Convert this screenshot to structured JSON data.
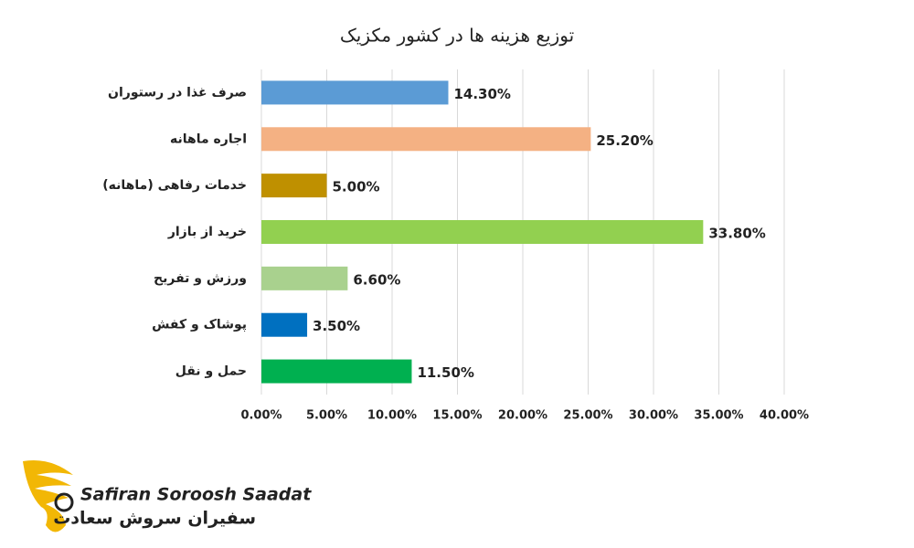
{
  "chart_data": {
    "type": "bar",
    "orientation": "horizontal",
    "title": "توزیع هزینه ها در کشور مکزیک",
    "categories": [
      "صرف غذا در رستوران",
      "اجاره ماهانه",
      "خدمات رفاهی (ماهانه)",
      "خرید از بازار",
      "ورزش و تفریح",
      "پوشاک و کفش",
      "حمل و نقل"
    ],
    "values": [
      14.3,
      25.2,
      5.0,
      33.8,
      6.6,
      3.5,
      11.5
    ],
    "value_labels": [
      "14.30%",
      "25.20%",
      "5.00%",
      "33.80%",
      "6.60%",
      "3.50%",
      "11.50%"
    ],
    "colors": [
      "#5b9bd5",
      "#f4b183",
      "#bf9000",
      "#92d050",
      "#a9d18e",
      "#0070c0",
      "#00b050"
    ],
    "xlim": [
      0,
      40
    ],
    "xticks": [
      {
        "value": 0,
        "label": "0.00%"
      },
      {
        "value": 5,
        "label": "5.00%"
      },
      {
        "value": 10,
        "label": "10.00%"
      },
      {
        "value": 15,
        "label": "15.00%"
      },
      {
        "value": 20,
        "label": "20.00%"
      },
      {
        "value": 25,
        "label": "25.00%"
      },
      {
        "value": 30,
        "label": "30.00%"
      },
      {
        "value": 35,
        "label": "35.00%"
      },
      {
        "value": 40,
        "label": "40.00%"
      }
    ],
    "grid": true
  },
  "logo": {
    "name": "Safiran Soroosh Saadat",
    "name_fa": "سفیران سروش سعادت"
  }
}
